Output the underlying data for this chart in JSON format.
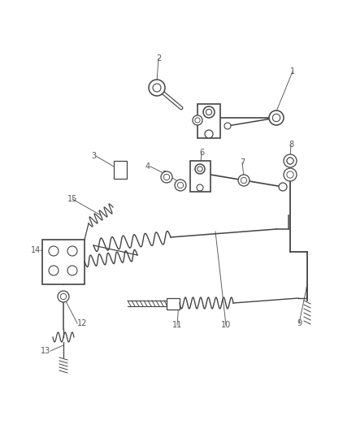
{
  "background": "#ffffff",
  "line_color": "#444444",
  "label_color": "#555555",
  "label_fontsize": 7.0,
  "fig_w": 4.38,
  "fig_h": 5.33,
  "dpi": 100
}
